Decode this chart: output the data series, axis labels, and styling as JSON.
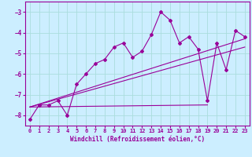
{
  "xlabel": "Windchill (Refroidissement éolien,°C)",
  "ylabel": "",
  "bg_color": "#cceeff",
  "line_color": "#990099",
  "grid_color": "#aadddd",
  "xlim": [
    -0.5,
    23.5
  ],
  "ylim": [
    -8.5,
    -2.5
  ],
  "yticks": [
    -8,
    -7,
    -6,
    -5,
    -4,
    -3
  ],
  "xticks": [
    0,
    1,
    2,
    3,
    4,
    5,
    6,
    7,
    8,
    9,
    10,
    11,
    12,
    13,
    14,
    15,
    16,
    17,
    18,
    19,
    20,
    21,
    22,
    23
  ],
  "line1_x": [
    0,
    1,
    2,
    3,
    4,
    5,
    6,
    7,
    8,
    9,
    10,
    11,
    12,
    13,
    14,
    15,
    16,
    17,
    18,
    19,
    20,
    21,
    22,
    23
  ],
  "line1_y": [
    -8.2,
    -7.5,
    -7.5,
    -7.3,
    -8.0,
    -6.5,
    -6.0,
    -5.5,
    -5.3,
    -4.7,
    -4.5,
    -5.2,
    -4.9,
    -4.1,
    -3.0,
    -3.4,
    -4.5,
    -4.2,
    -4.8,
    -7.3,
    -4.5,
    -5.8,
    -3.9,
    -4.2
  ],
  "line2_x": [
    0,
    23
  ],
  "line2_y": [
    -7.6,
    -4.3
  ],
  "line3_x": [
    0,
    23
  ],
  "line3_y": [
    -7.6,
    -4.7
  ],
  "line4_x": [
    0,
    19
  ],
  "line4_y": [
    -7.6,
    -7.5
  ]
}
